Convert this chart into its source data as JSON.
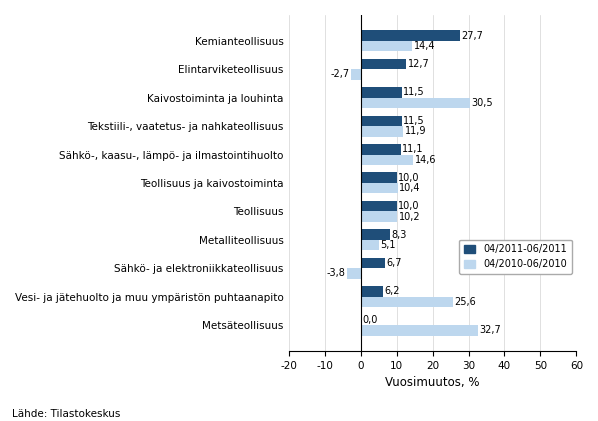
{
  "categories": [
    "Kemianteollisuus",
    "Elintarviketeollisuus",
    "Kaivostoiminta ja louhinta",
    "Tekstiili-, vaatetus- ja nahkateollisuus",
    "Sähkö-, kaasu-, lämpö- ja ilmastointihuolto",
    "Teollisuus ja kaivostoiminta",
    "Teollisuus",
    "Metalliteollisuus",
    "Sähkö- ja elektroniikkateollisuus",
    "Vesi- ja jätehuolto ja muu ympäristön puhtaanapito",
    "Metsäteollisuus"
  ],
  "series_2011": [
    27.7,
    12.7,
    11.5,
    11.5,
    11.1,
    10.0,
    10.0,
    8.3,
    6.7,
    6.2,
    0.0
  ],
  "series_2010": [
    14.4,
    -2.7,
    30.5,
    11.9,
    14.6,
    10.4,
    10.2,
    5.1,
    -3.8,
    25.6,
    32.7
  ],
  "color_2011": "#1F4E79",
  "color_2010": "#BDD7EE",
  "xlabel": "Vuosimuutos, %",
  "legend_2011": "04/2011-06/2011",
  "legend_2010": "04/2010-06/2010",
  "source": "Lähde: Tilastokeskus",
  "xlim": [
    -20,
    60
  ],
  "xticks": [
    -20,
    -10,
    0,
    10,
    20,
    30,
    40,
    50,
    60
  ],
  "bar_height": 0.37,
  "label_fontsize": 7.0,
  "tick_fontsize": 7.5,
  "xlabel_fontsize": 8.5,
  "figwidth": 5.98,
  "figheight": 4.21,
  "dpi": 100
}
